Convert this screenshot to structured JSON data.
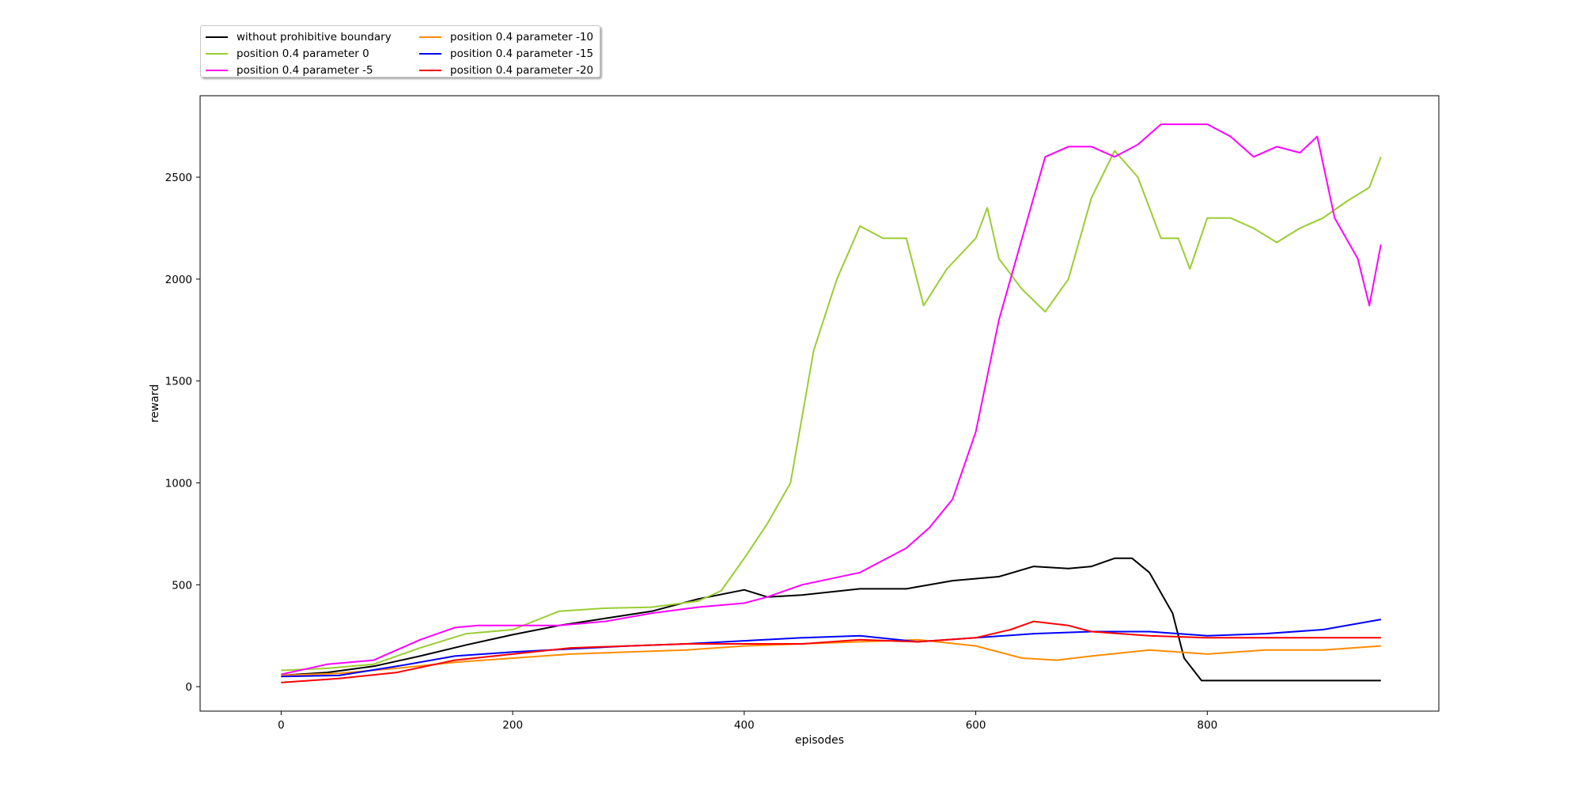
{
  "chart_data": {
    "type": "line",
    "title": "",
    "xlabel": "episodes",
    "ylabel": "reward",
    "xlim": [
      -70,
      1000
    ],
    "ylim": [
      -120,
      2900
    ],
    "xticks": [
      0,
      200,
      400,
      600,
      800
    ],
    "yticks": [
      0,
      500,
      1000,
      1500,
      2000,
      2500
    ],
    "grid": false,
    "legend_position": "top-left",
    "legend_columns": 2,
    "series": [
      {
        "name": "without prohibitive boundary",
        "color": "#000000",
        "points": [
          [
            0,
            55
          ],
          [
            40,
            70
          ],
          [
            80,
            100
          ],
          [
            120,
            150
          ],
          [
            160,
            205
          ],
          [
            200,
            255
          ],
          [
            240,
            300
          ],
          [
            280,
            335
          ],
          [
            320,
            370
          ],
          [
            360,
            430
          ],
          [
            400,
            475
          ],
          [
            420,
            440
          ],
          [
            450,
            450
          ],
          [
            500,
            480
          ],
          [
            540,
            480
          ],
          [
            580,
            520
          ],
          [
            620,
            540
          ],
          [
            650,
            590
          ],
          [
            680,
            580
          ],
          [
            700,
            590
          ],
          [
            720,
            630
          ],
          [
            735,
            630
          ],
          [
            750,
            560
          ],
          [
            770,
            360
          ],
          [
            780,
            140
          ],
          [
            795,
            30
          ],
          [
            850,
            30
          ],
          [
            900,
            30
          ],
          [
            950,
            30
          ]
        ]
      },
      {
        "name": "position 0.4 parameter 0",
        "color": "#9acd32",
        "points": [
          [
            0,
            80
          ],
          [
            40,
            90
          ],
          [
            80,
            110
          ],
          [
            120,
            190
          ],
          [
            160,
            260
          ],
          [
            200,
            280
          ],
          [
            240,
            370
          ],
          [
            280,
            385
          ],
          [
            320,
            390
          ],
          [
            360,
            420
          ],
          [
            380,
            470
          ],
          [
            400,
            630
          ],
          [
            420,
            800
          ],
          [
            440,
            1000
          ],
          [
            460,
            1650
          ],
          [
            480,
            2000
          ],
          [
            500,
            2260
          ],
          [
            520,
            2200
          ],
          [
            540,
            2200
          ],
          [
            555,
            1870
          ],
          [
            575,
            2050
          ],
          [
            600,
            2200
          ],
          [
            610,
            2350
          ],
          [
            620,
            2100
          ],
          [
            640,
            1950
          ],
          [
            660,
            1840
          ],
          [
            680,
            2000
          ],
          [
            700,
            2400
          ],
          [
            720,
            2630
          ],
          [
            740,
            2500
          ],
          [
            760,
            2200
          ],
          [
            775,
            2200
          ],
          [
            785,
            2050
          ],
          [
            800,
            2300
          ],
          [
            820,
            2300
          ],
          [
            840,
            2250
          ],
          [
            860,
            2180
          ],
          [
            880,
            2250
          ],
          [
            900,
            2300
          ],
          [
            920,
            2380
          ],
          [
            940,
            2450
          ],
          [
            950,
            2600
          ]
        ]
      },
      {
        "name": "position 0.4 parameter -5",
        "color": "#ff00ff",
        "points": [
          [
            0,
            60
          ],
          [
            40,
            110
          ],
          [
            80,
            130
          ],
          [
            120,
            230
          ],
          [
            150,
            290
          ],
          [
            170,
            300
          ],
          [
            200,
            300
          ],
          [
            240,
            300
          ],
          [
            280,
            320
          ],
          [
            320,
            360
          ],
          [
            360,
            390
          ],
          [
            400,
            410
          ],
          [
            420,
            440
          ],
          [
            450,
            500
          ],
          [
            500,
            560
          ],
          [
            540,
            680
          ],
          [
            560,
            780
          ],
          [
            580,
            920
          ],
          [
            600,
            1250
          ],
          [
            620,
            1800
          ],
          [
            640,
            2200
          ],
          [
            660,
            2600
          ],
          [
            680,
            2650
          ],
          [
            700,
            2650
          ],
          [
            720,
            2600
          ],
          [
            740,
            2660
          ],
          [
            760,
            2760
          ],
          [
            800,
            2760
          ],
          [
            820,
            2700
          ],
          [
            840,
            2600
          ],
          [
            860,
            2650
          ],
          [
            880,
            2620
          ],
          [
            895,
            2700
          ],
          [
            910,
            2300
          ],
          [
            930,
            2100
          ],
          [
            940,
            1870
          ],
          [
            950,
            2170
          ]
        ]
      },
      {
        "name": "position 0.4 parameter -10",
        "color": "#ff8c00",
        "points": [
          [
            0,
            55
          ],
          [
            50,
            65
          ],
          [
            100,
            90
          ],
          [
            150,
            120
          ],
          [
            200,
            140
          ],
          [
            250,
            160
          ],
          [
            300,
            170
          ],
          [
            350,
            180
          ],
          [
            400,
            200
          ],
          [
            450,
            210
          ],
          [
            500,
            220
          ],
          [
            550,
            230
          ],
          [
            600,
            200
          ],
          [
            640,
            140
          ],
          [
            670,
            130
          ],
          [
            700,
            150
          ],
          [
            750,
            180
          ],
          [
            800,
            160
          ],
          [
            850,
            180
          ],
          [
            900,
            180
          ],
          [
            950,
            200
          ]
        ]
      },
      {
        "name": "position 0.4 parameter -15",
        "color": "#0000ff",
        "points": [
          [
            0,
            50
          ],
          [
            50,
            55
          ],
          [
            100,
            100
          ],
          [
            150,
            150
          ],
          [
            200,
            170
          ],
          [
            250,
            185
          ],
          [
            300,
            200
          ],
          [
            350,
            210
          ],
          [
            400,
            225
          ],
          [
            450,
            240
          ],
          [
            500,
            250
          ],
          [
            550,
            220
          ],
          [
            600,
            240
          ],
          [
            650,
            260
          ],
          [
            700,
            270
          ],
          [
            750,
            270
          ],
          [
            800,
            250
          ],
          [
            850,
            260
          ],
          [
            900,
            280
          ],
          [
            950,
            330
          ]
        ]
      },
      {
        "name": "position 0.4 parameter -20",
        "color": "#ff0000",
        "points": [
          [
            0,
            20
          ],
          [
            50,
            40
          ],
          [
            100,
            70
          ],
          [
            150,
            130
          ],
          [
            200,
            160
          ],
          [
            250,
            190
          ],
          [
            300,
            200
          ],
          [
            350,
            210
          ],
          [
            400,
            210
          ],
          [
            450,
            210
          ],
          [
            500,
            230
          ],
          [
            550,
            220
          ],
          [
            600,
            240
          ],
          [
            630,
            280
          ],
          [
            650,
            320
          ],
          [
            680,
            300
          ],
          [
            700,
            270
          ],
          [
            750,
            250
          ],
          [
            800,
            240
          ],
          [
            850,
            240
          ],
          [
            900,
            240
          ],
          [
            950,
            240
          ]
        ]
      }
    ]
  }
}
